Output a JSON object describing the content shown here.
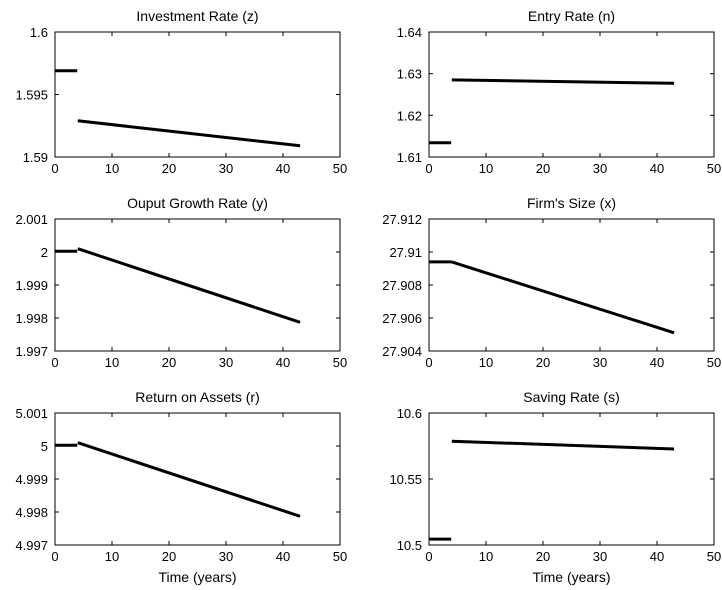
{
  "chart_data": [
    {
      "type": "line",
      "title": "Investment Rate (z)",
      "xlabel": "",
      "ylabel": "",
      "xlim": [
        0,
        50
      ],
      "ylim": [
        1.59,
        1.6
      ],
      "xticks": [
        0,
        10,
        20,
        30,
        40,
        50
      ],
      "yticks": [
        "1.59",
        "1.595",
        "1.6"
      ],
      "grid": false,
      "series": [
        {
          "x": [
            0,
            3.9
          ],
          "y": [
            1.5969,
            1.5969
          ]
        },
        {
          "x": [
            4,
            43
          ],
          "y": [
            1.5929,
            1.5909
          ]
        }
      ]
    },
    {
      "type": "line",
      "title": "Entry Rate (n)",
      "xlabel": "",
      "ylabel": "",
      "xlim": [
        0,
        50
      ],
      "ylim": [
        1.61,
        1.64
      ],
      "xticks": [
        0,
        10,
        20,
        30,
        40,
        50
      ],
      "yticks": [
        "1.61",
        "1.62",
        "1.63",
        "1.64"
      ],
      "grid": false,
      "series": [
        {
          "x": [
            0,
            3.9
          ],
          "y": [
            1.6134,
            1.6134
          ]
        },
        {
          "x": [
            4,
            43
          ],
          "y": [
            1.6285,
            1.6277
          ]
        }
      ]
    },
    {
      "type": "line",
      "title": "Ouput Growth Rate (y)",
      "xlabel": "",
      "ylabel": "",
      "xlim": [
        0,
        50
      ],
      "ylim": [
        1.997,
        2.001
      ],
      "xticks": [
        0,
        10,
        20,
        30,
        40,
        50
      ],
      "yticks": [
        "1.997",
        "1.998",
        "1.999",
        "2",
        "2.001"
      ],
      "grid": false,
      "series": [
        {
          "x": [
            0,
            3.9
          ],
          "y": [
            2.00002,
            2.00002
          ]
        },
        {
          "x": [
            4,
            43
          ],
          "y": [
            2.0001,
            1.99787
          ]
        }
      ]
    },
    {
      "type": "line",
      "title": "Firm's Size (x)",
      "xlabel": "",
      "ylabel": "",
      "xlim": [
        0,
        50
      ],
      "ylim": [
        27.904,
        27.912
      ],
      "xticks": [
        0,
        10,
        20,
        30,
        40,
        50
      ],
      "yticks": [
        "27.904",
        "27.906",
        "27.908",
        "27.91",
        "27.912"
      ],
      "grid": false,
      "series": [
        {
          "x": [
            0,
            4
          ],
          "y": [
            27.9094,
            27.9094
          ]
        },
        {
          "x": [
            4,
            43
          ],
          "y": [
            27.9094,
            27.9051
          ]
        }
      ]
    },
    {
      "type": "line",
      "title": "Return on Assets (r)",
      "xlabel": "Time (years)",
      "ylabel": "",
      "xlim": [
        0,
        50
      ],
      "ylim": [
        4.997,
        5.001
      ],
      "xticks": [
        0,
        10,
        20,
        30,
        40,
        50
      ],
      "yticks": [
        "4.997",
        "4.998",
        "4.999",
        "5",
        "5.001"
      ],
      "grid": false,
      "series": [
        {
          "x": [
            0,
            3.9
          ],
          "y": [
            5.00002,
            5.00002
          ]
        },
        {
          "x": [
            4,
            43
          ],
          "y": [
            5.0001,
            4.99787
          ]
        }
      ]
    },
    {
      "type": "line",
      "title": "Saving Rate (s)",
      "xlabel": "Time (years)",
      "ylabel": "",
      "xlim": [
        0,
        50
      ],
      "ylim": [
        10.5,
        10.6
      ],
      "xticks": [
        0,
        10,
        20,
        30,
        40,
        50
      ],
      "yticks": [
        "10.5",
        "10.55",
        "10.6"
      ],
      "grid": false,
      "series": [
        {
          "x": [
            0,
            3.9
          ],
          "y": [
            10.5045,
            10.5045
          ]
        },
        {
          "x": [
            4,
            43
          ],
          "y": [
            10.5786,
            10.5727
          ]
        }
      ]
    }
  ]
}
